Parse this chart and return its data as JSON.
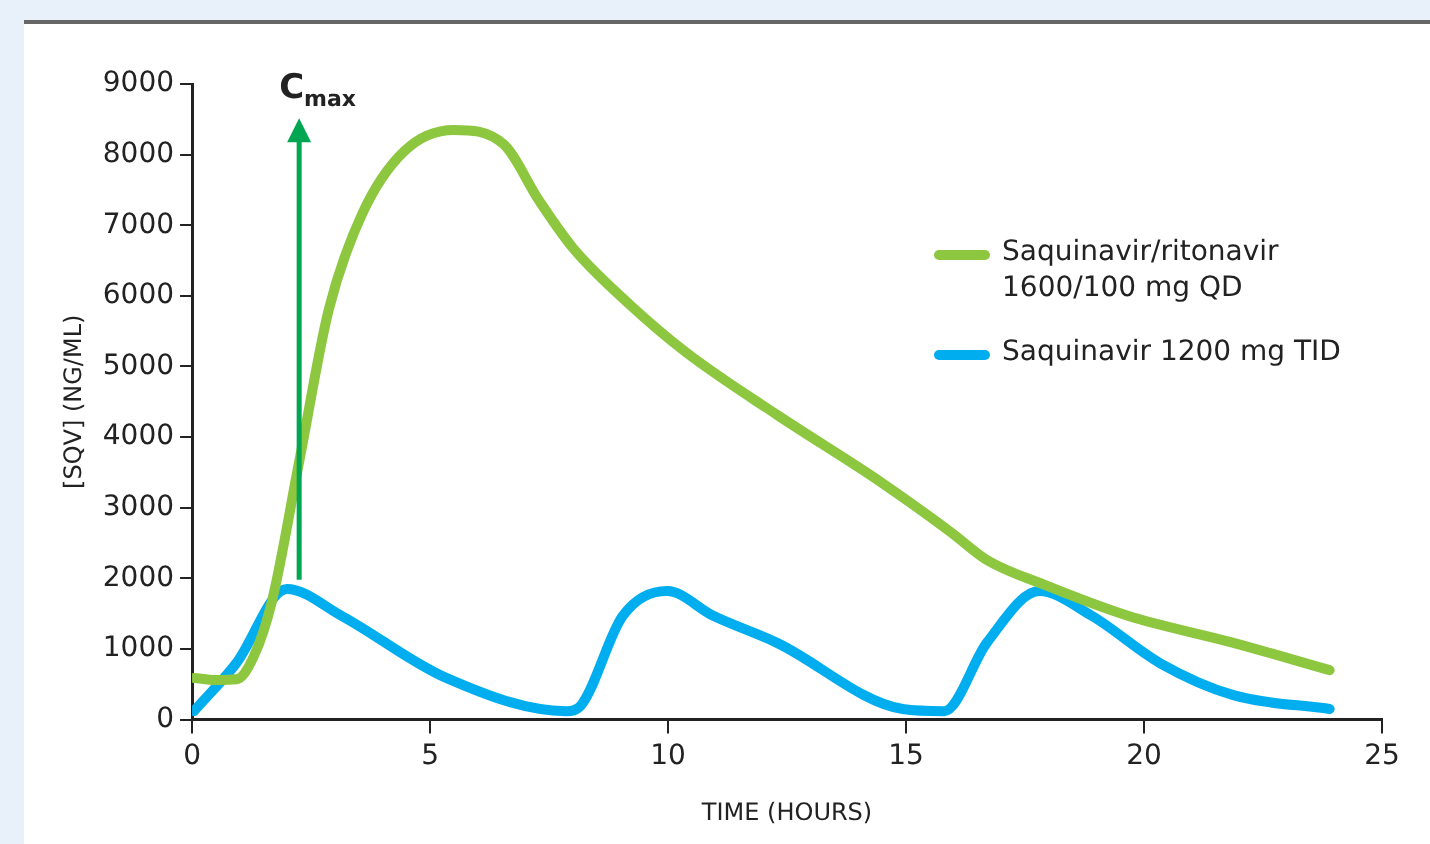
{
  "chart_data": {
    "type": "line",
    "xlabel": "TIME (HOURS)",
    "ylabel": "[SQV] (NG/ML)",
    "xlim": [
      0,
      25
    ],
    "xticks": [
      0,
      5,
      10,
      15,
      20,
      25
    ],
    "ylim": [
      0,
      9000
    ],
    "yticks": [
      0,
      1000,
      2000,
      3000,
      4000,
      5000,
      6000,
      7000,
      8000,
      9000
    ],
    "grid": false,
    "legend": "right",
    "marker": "none",
    "line_style": "solid",
    "annotations": [
      "C$_{max}$"
    ],
    "series": [
      {
        "name": "Saquinavir/ritonavir 1600/100 mg QD",
        "color": "#8dc63f",
        "x": [
          0.04,
          0.5,
          0.93,
          1.3,
          1.68,
          2.25,
          2.87,
          3.58,
          4.46,
          5.5,
          6.54,
          7.29,
          8.0,
          9.19,
          10.38,
          12.28,
          14.5,
          15.95,
          16.7,
          17.9,
          19.66,
          21.86,
          23.9
        ],
        "values": [
          590,
          560,
          570,
          900,
          1680,
          3650,
          5800,
          7170,
          8050,
          8350,
          8150,
          7350,
          6680,
          5880,
          5200,
          4320,
          3350,
          2650,
          2260,
          1910,
          1470,
          1090,
          700
        ]
      },
      {
        "name": "Saquinavir 1200 mg TID",
        "color": "#00aeef",
        "x": [
          0.04,
          0.93,
          1.99,
          3.14,
          5.34,
          7.86,
          8.17,
          9.05,
          9.98,
          10.95,
          12.28,
          14.93,
          15.8,
          16.7,
          17.8,
          18.9,
          20.36,
          21.86,
          23.9
        ],
        "values": [
          120,
          800,
          1850,
          1470,
          590,
          120,
          200,
          1470,
          1820,
          1470,
          1090,
          150,
          120,
          1090,
          1820,
          1470,
          790,
          350,
          150
        ]
      }
    ]
  }
}
